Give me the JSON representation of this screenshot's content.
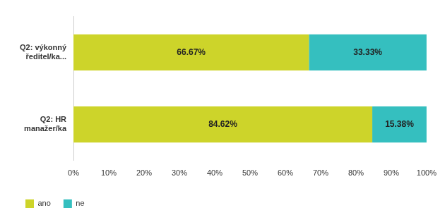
{
  "chart_data": {
    "type": "bar",
    "orientation": "horizontal",
    "stacked": true,
    "categories": [
      "Q2: výkonný ředitel/ka...",
      "Q2: HR manažer/ka"
    ],
    "series": [
      {
        "name": "ano",
        "color": "#cdd42a",
        "values": [
          66.67,
          84.62
        ],
        "value_labels": [
          "66.67%",
          "84.62%"
        ]
      },
      {
        "name": "ne",
        "color": "#35bfbf",
        "values": [
          33.33,
          15.38
        ],
        "value_labels": [
          "33.33%",
          "15.38%"
        ]
      }
    ],
    "xlim": [
      0,
      100
    ],
    "xticks": [
      {
        "value": 0,
        "label": "0%"
      },
      {
        "value": 10,
        "label": "10%"
      },
      {
        "value": 20,
        "label": "20%"
      },
      {
        "value": 30,
        "label": "30%"
      },
      {
        "value": 40,
        "label": "40%"
      },
      {
        "value": 50,
        "label": "50%"
      },
      {
        "value": 60,
        "label": "60%"
      },
      {
        "value": 70,
        "label": "70%"
      },
      {
        "value": 80,
        "label": "80%"
      },
      {
        "value": 90,
        "label": "90%"
      },
      {
        "value": 100,
        "label": "100%"
      }
    ],
    "grid": false,
    "legend": "bottom-left",
    "data_labels": true
  }
}
